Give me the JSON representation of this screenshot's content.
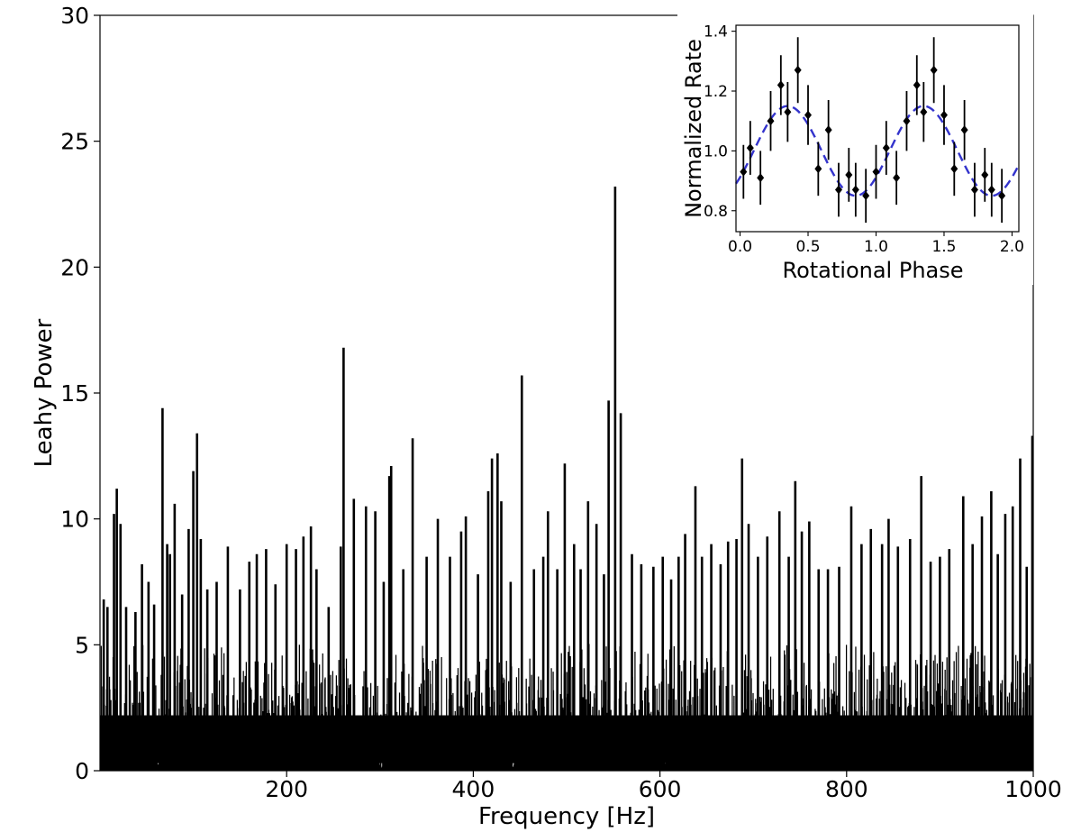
{
  "chart_data": [
    {
      "type": "line",
      "title": "",
      "xlabel": "Frequency [Hz]",
      "ylabel": "Leahy Power",
      "xlim": [
        0,
        1000
      ],
      "ylim": [
        0,
        30
      ],
      "xticks": [
        200,
        400,
        600,
        800,
        1000
      ],
      "yticks": [
        0,
        5,
        10,
        15,
        20,
        25,
        30
      ],
      "grid": false,
      "legend": "none",
      "color": "#000000",
      "series": [
        {
          "noise_floor": "dense noise, typical 0-5",
          "peaks": [
            {
              "x": 4,
              "y": 6.8
            },
            {
              "x": 8,
              "y": 6.5
            },
            {
              "x": 15,
              "y": 10.2
            },
            {
              "x": 18,
              "y": 11.2
            },
            {
              "x": 22,
              "y": 9.8
            },
            {
              "x": 28,
              "y": 6.5
            },
            {
              "x": 38,
              "y": 6.3
            },
            {
              "x": 45,
              "y": 8.2
            },
            {
              "x": 52,
              "y": 7.5
            },
            {
              "x": 58,
              "y": 6.6
            },
            {
              "x": 67,
              "y": 14.4
            },
            {
              "x": 72,
              "y": 9.0
            },
            {
              "x": 75,
              "y": 8.6
            },
            {
              "x": 80,
              "y": 10.6
            },
            {
              "x": 88,
              "y": 7.0
            },
            {
              "x": 95,
              "y": 9.6
            },
            {
              "x": 100,
              "y": 11.9
            },
            {
              "x": 104,
              "y": 13.4
            },
            {
              "x": 108,
              "y": 9.2
            },
            {
              "x": 115,
              "y": 7.2
            },
            {
              "x": 125,
              "y": 7.5
            },
            {
              "x": 137,
              "y": 8.9
            },
            {
              "x": 150,
              "y": 7.2
            },
            {
              "x": 160,
              "y": 8.3
            },
            {
              "x": 168,
              "y": 8.6
            },
            {
              "x": 178,
              "y": 8.8
            },
            {
              "x": 188,
              "y": 7.4
            },
            {
              "x": 200,
              "y": 9.0
            },
            {
              "x": 210,
              "y": 8.8
            },
            {
              "x": 218,
              "y": 9.3
            },
            {
              "x": 226,
              "y": 9.7
            },
            {
              "x": 232,
              "y": 8.0
            },
            {
              "x": 245,
              "y": 6.5
            },
            {
              "x": 258,
              "y": 8.9
            },
            {
              "x": 261,
              "y": 16.8
            },
            {
              "x": 272,
              "y": 10.8
            },
            {
              "x": 285,
              "y": 10.5
            },
            {
              "x": 295,
              "y": 10.3
            },
            {
              "x": 304,
              "y": 7.5
            },
            {
              "x": 310,
              "y": 11.7
            },
            {
              "x": 312,
              "y": 12.1
            },
            {
              "x": 325,
              "y": 8.0
            },
            {
              "x": 335,
              "y": 13.2
            },
            {
              "x": 350,
              "y": 8.5
            },
            {
              "x": 362,
              "y": 10.0
            },
            {
              "x": 375,
              "y": 8.5
            },
            {
              "x": 387,
              "y": 9.5
            },
            {
              "x": 392,
              "y": 10.1
            },
            {
              "x": 405,
              "y": 7.8
            },
            {
              "x": 416,
              "y": 11.1
            },
            {
              "x": 420,
              "y": 12.4
            },
            {
              "x": 426,
              "y": 12.6
            },
            {
              "x": 430,
              "y": 10.7
            },
            {
              "x": 440,
              "y": 7.5
            },
            {
              "x": 452,
              "y": 15.7
            },
            {
              "x": 465,
              "y": 8.0
            },
            {
              "x": 475,
              "y": 8.5
            },
            {
              "x": 480,
              "y": 10.3
            },
            {
              "x": 490,
              "y": 8.0
            },
            {
              "x": 498,
              "y": 12.2
            },
            {
              "x": 508,
              "y": 9.0
            },
            {
              "x": 515,
              "y": 8.0
            },
            {
              "x": 523,
              "y": 10.7
            },
            {
              "x": 532,
              "y": 9.8
            },
            {
              "x": 540,
              "y": 7.8
            },
            {
              "x": 545,
              "y": 14.7
            },
            {
              "x": 552,
              "y": 23.2
            },
            {
              "x": 558,
              "y": 14.2
            },
            {
              "x": 570,
              "y": 8.6
            },
            {
              "x": 580,
              "y": 8.2
            },
            {
              "x": 593,
              "y": 8.1
            },
            {
              "x": 603,
              "y": 8.5
            },
            {
              "x": 612,
              "y": 7.6
            },
            {
              "x": 620,
              "y": 8.5
            },
            {
              "x": 627,
              "y": 9.4
            },
            {
              "x": 638,
              "y": 11.3
            },
            {
              "x": 645,
              "y": 8.5
            },
            {
              "x": 655,
              "y": 9.0
            },
            {
              "x": 665,
              "y": 8.2
            },
            {
              "x": 673,
              "y": 9.1
            },
            {
              "x": 682,
              "y": 9.2
            },
            {
              "x": 688,
              "y": 12.4
            },
            {
              "x": 695,
              "y": 9.8
            },
            {
              "x": 705,
              "y": 8.5
            },
            {
              "x": 715,
              "y": 9.3
            },
            {
              "x": 728,
              "y": 10.3
            },
            {
              "x": 738,
              "y": 8.5
            },
            {
              "x": 745,
              "y": 11.5
            },
            {
              "x": 752,
              "y": 9.5
            },
            {
              "x": 760,
              "y": 9.9
            },
            {
              "x": 770,
              "y": 8.0
            },
            {
              "x": 780,
              "y": 8.0
            },
            {
              "x": 792,
              "y": 8.1
            },
            {
              "x": 805,
              "y": 10.5
            },
            {
              "x": 816,
              "y": 9.0
            },
            {
              "x": 826,
              "y": 9.6
            },
            {
              "x": 838,
              "y": 9.0
            },
            {
              "x": 845,
              "y": 10.0
            },
            {
              "x": 855,
              "y": 8.9
            },
            {
              "x": 868,
              "y": 9.2
            },
            {
              "x": 880,
              "y": 11.7
            },
            {
              "x": 890,
              "y": 8.3
            },
            {
              "x": 900,
              "y": 8.5
            },
            {
              "x": 910,
              "y": 8.8
            },
            {
              "x": 925,
              "y": 10.9
            },
            {
              "x": 935,
              "y": 9.0
            },
            {
              "x": 945,
              "y": 10.1
            },
            {
              "x": 955,
              "y": 11.1
            },
            {
              "x": 962,
              "y": 8.6
            },
            {
              "x": 970,
              "y": 10.2
            },
            {
              "x": 978,
              "y": 10.5
            },
            {
              "x": 986,
              "y": 12.4
            },
            {
              "x": 993,
              "y": 8.1
            },
            {
              "x": 999,
              "y": 13.3
            }
          ]
        }
      ]
    },
    {
      "type": "scatter",
      "title": "",
      "placement": "top-right inset",
      "xlabel": "Rotational Phase",
      "ylabel": "Normalized Rate",
      "xlim": [
        -0.03,
        2.05
      ],
      "ylim": [
        0.73,
        1.42
      ],
      "xticks": [
        0.0,
        0.5,
        1.0,
        1.5,
        2.0
      ],
      "yticks": [
        0.8,
        1.0,
        1.2,
        1.4
      ],
      "xtick_labels": [
        "0.0",
        "0.5",
        "1.0",
        "1.5",
        "2.0"
      ],
      "ytick_labels": [
        "0.8",
        "1.0",
        "1.2",
        "1.4"
      ],
      "grid": false,
      "series": [
        {
          "marker": "filled diamond",
          "color": "#000000",
          "x": [
            0.025,
            0.075,
            0.15,
            0.225,
            0.3,
            0.35,
            0.425,
            0.5,
            0.575,
            0.65,
            0.725,
            0.8,
            0.85,
            0.925,
            1.0,
            1.075,
            1.15,
            1.225,
            1.3,
            1.35,
            1.425,
            1.5,
            1.575,
            1.65,
            1.725,
            1.8,
            1.85,
            1.925
          ],
          "y": [
            0.93,
            1.01,
            0.91,
            1.1,
            1.22,
            1.13,
            1.27,
            1.12,
            0.94,
            1.07,
            0.87,
            0.92,
            0.87,
            0.85,
            0.93,
            1.01,
            0.91,
            1.1,
            1.22,
            1.13,
            1.27,
            1.12,
            0.94,
            1.07,
            0.87,
            0.92,
            0.87,
            0.85
          ],
          "yerr": [
            0.09,
            0.09,
            0.09,
            0.1,
            0.1,
            0.1,
            0.11,
            0.1,
            0.09,
            0.1,
            0.09,
            0.09,
            0.09,
            0.09,
            0.09,
            0.09,
            0.09,
            0.1,
            0.1,
            0.1,
            0.11,
            0.1,
            0.09,
            0.1,
            0.09,
            0.09,
            0.09,
            0.09
          ]
        },
        {
          "style": "dashed",
          "color": "#3333cc",
          "model": "sinusoid: 1.0 + 0.15·sin(2π(phase − 0.1))",
          "mean": 1.0,
          "amplitude": 0.15,
          "period": 1.0,
          "phase_of_maximum": 0.35
        }
      ]
    }
  ]
}
